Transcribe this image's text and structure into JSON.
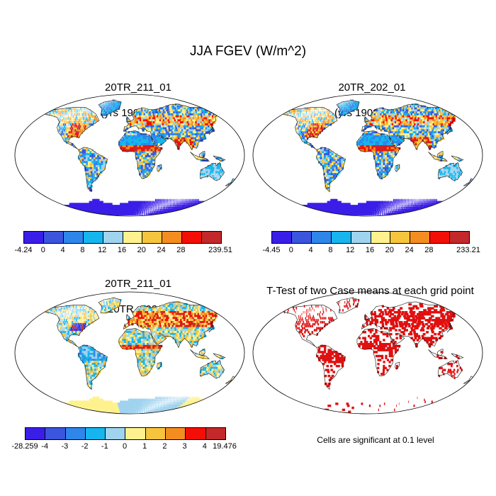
{
  "title": "JJA FGEV (W/m^2)",
  "panels": [
    {
      "title_line1": "20TR_211_01",
      "title_line2": "(yrs 1908-1927)"
    },
    {
      "title_line1": "20TR_202_01",
      "title_line2": "(yrs 1908-1927)"
    },
    {
      "title_line1": "20TR_211_01",
      "title_line2": "- 20TR_202_01"
    },
    {
      "title_line1": "T-Test of two Case means at each grid point",
      "title_line2": ""
    }
  ],
  "colorbars": [
    {
      "colors": [
        "#3a1ee8",
        "#3b55dd",
        "#2f86ea",
        "#16b5ee",
        "#9fd3ee",
        "#fff28e",
        "#f7c53d",
        "#f48d20",
        "#f30f05",
        "#c3282a"
      ],
      "labels": [
        "-4.24",
        "0",
        "4",
        "8",
        "12",
        "16",
        "20",
        "24",
        "28",
        "239.51"
      ]
    },
    {
      "colors": [
        "#3a1ee8",
        "#3b55dd",
        "#2f86ea",
        "#16b5ee",
        "#9fd3ee",
        "#fff28e",
        "#f7c53d",
        "#f48d20",
        "#f30f05",
        "#c3282a"
      ],
      "labels": [
        "-4.45",
        "0",
        "4",
        "8",
        "12",
        "16",
        "20",
        "24",
        "28",
        "233.21"
      ]
    },
    {
      "colors": [
        "#3a1ee8",
        "#3b55dd",
        "#2f86ea",
        "#16b5ee",
        "#9fd3ee",
        "#fff28e",
        "#f7c53d",
        "#f48d20",
        "#f30f05",
        "#c3282a"
      ],
      "labels": [
        "-28.259",
        "-4",
        "-3",
        "-2",
        "-1",
        "0",
        "1",
        "2",
        "3",
        "4",
        "19.476"
      ]
    }
  ],
  "significance_note": "Cells are significant at 0.1 level",
  "colors": {
    "significant": "#e01010",
    "antarctica_low": "#3a1ee8",
    "diff_neutral": "#fff28e"
  }
}
